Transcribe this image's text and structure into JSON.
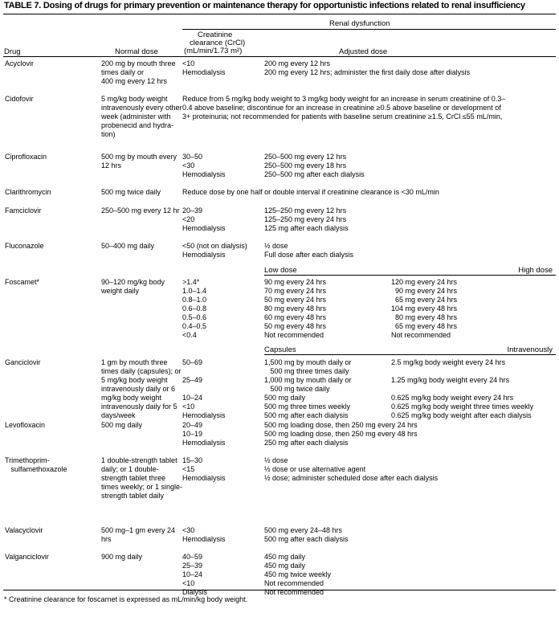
{
  "title": "TABLE 7. Dosing of drugs for primary prevention or maintenance therapy for opportunistic infections related to renal insufficiency",
  "header": {
    "group": "Renal dysfunction",
    "drug": "Drug",
    "normal_dose": "Normal dose",
    "crcl": [
      "Creatinine",
      "clearance (CrCl)",
      "(mL/min/1.73 m²)"
    ],
    "adjusted_dose": "Adjusted dose"
  },
  "rows": [
    {
      "drug": [
        "Acyclovir"
      ],
      "normal": [
        "200 mg by mouth three",
        "times daily or",
        "400 mg every 12 hrs"
      ],
      "crcl": [
        "<10",
        "Hemodialysis"
      ],
      "adjusted": [
        "200 mg every 12 hrs",
        "200 mg every 12 hrs; administer the first daily dose after dialysis"
      ]
    },
    {
      "drug": [
        "Cidofovir"
      ],
      "normal": [
        "5 mg/kg body weight",
        "intravenously every other",
        "week (administer with",
        "probenecid and hydra-",
        "tion)"
      ],
      "span": [
        "Reduce from 5 mg/kg body weight to 3 mg/kg body weight for an increase in serum creatinine of 0.3–",
        "0.4 above baseline; discontinue for an increase in creatinine ≥0.5 above baseline or development of",
        "3+ proteinuria; not recommended for patients with baseline serum creatinine ≥1.5, CrCl ≤55 mL/min,"
      ]
    },
    {
      "drug": [
        "Ciprofloxacin"
      ],
      "normal": [
        "500 mg by mouth every",
        "12 hrs"
      ],
      "crcl": [
        "30–50",
        "<30",
        "Hemodialysis"
      ],
      "adjusted": [
        "250–500 mg every 12 hrs",
        "250–500 mg every 18 hrs",
        "250–500 mg after each dialysis"
      ]
    },
    {
      "drug": [
        "Clarithromycin"
      ],
      "normal": [
        "500 mg twice daily"
      ],
      "span": [
        "Reduce dose by one half or double interval if creatinine clearance is <30 mL/min"
      ]
    },
    {
      "drug": [
        "Famciclovir"
      ],
      "normal": [
        "250–500 mg every 12 hr"
      ],
      "crcl": [
        "20–39",
        "<20",
        "Hemodialysis"
      ],
      "adjusted": [
        "125–250 mg every 12 hrs",
        "125–250 mg every 24 hrs",
        "125 mg after each dialysis"
      ]
    },
    {
      "drug": [
        "Fluconazole"
      ],
      "normal": [
        "50–400 mg daily"
      ],
      "crcl": [
        "<50 (not on dialysis)",
        "Hemodialysis"
      ],
      "adjusted": [
        "½ dose",
        "Full dose after each dialysis"
      ]
    },
    {
      "drug": [
        "Foscamet*"
      ],
      "normal": [
        "90–120 mg/kg body",
        "weight daily"
      ],
      "subheader": {
        "left": "Low dose",
        "right": "High dose"
      },
      "crcl": [
        ">1.4*",
        "1.0–1.4",
        "0.8–1.0",
        "0.6–0.8",
        "0.5–0.6",
        "0.4–0.5",
        "<0.4"
      ],
      "adjusted": [
        "90 mg every 24 hrs",
        "70 mg every 24 hrs",
        "50 mg every 24 hrs",
        "80 mg every 48 hrs",
        "60 mg every 48 hrs",
        "50 mg every 48 hrs",
        "Not recommended"
      ],
      "high": [
        "120 mg every 24 hrs",
        "  90 mg every 24 hrs",
        "  65 mg every 24 hrs",
        "104 mg every 48 hrs",
        "  80 mg every 48 hrs",
        "  65 mg every 48 hrs",
        "Not recommended"
      ]
    },
    {
      "drug": [
        "Ganciclovir"
      ],
      "normal": [
        "1 gm by mouth three",
        "times daily (capsules); or",
        "5 mg/kg body weight",
        "intravenously daily or 6",
        "mg/kg body weight",
        "intravenously daily for 5",
        "days/week"
      ],
      "subheader": {
        "left": "Capsules",
        "right": "Intravenously"
      },
      "crcl": [
        "50–69",
        "",
        "25–49",
        "",
        "10–24",
        "<10",
        "Hemodialysis"
      ],
      "adjusted": [
        "1,500 mg by mouth daily or",
        "   500 mg three times daily",
        "1,000 mg by mouth daily or",
        "   500 mg twice daily",
        "500 mg daily",
        "500 mg three times weekly",
        "500 mg after each dialysis"
      ],
      "high": [
        "2.5 mg/kg body weight every 24 hrs",
        "",
        "1.25 mg/kg body weight every 24 hrs",
        "",
        "0.625 mg/kg body weight every 24 hrs",
        "0.625 mg/kg body weight three times weekly",
        "0.625 mg/kg body weight after each dialysis"
      ]
    },
    {
      "drug": [
        "Levofloxacin"
      ],
      "normal": [
        "500 mg daily"
      ],
      "crcl": [
        "20–49",
        "10–19",
        "Hemodialysis"
      ],
      "adjusted": [
        "500 mg loading dose, then 250 mg every 24 hrs",
        "500 mg loading dose, then 250 mg every 48 hrs",
        "250 mg after each dialysis"
      ]
    },
    {
      "drug": [
        "Trimethoprim-",
        "   sulfamethoxazole"
      ],
      "normal": [
        "1 double-strength tablet",
        "daily; or 1 double-",
        "strength tablet three",
        "times weekly; or 1 single-",
        "strength tablet daily"
      ],
      "crcl": [
        "15–30",
        "<15",
        "Hemodialysis"
      ],
      "adjusted": [
        "½ dose",
        "½ dose or use alternative agent",
        "½ dose; administer scheduled dose after each dialysis"
      ]
    },
    {
      "drug": [
        "Valacyclovir"
      ],
      "normal": [
        "500 mg–1 gm every 24",
        "hrs"
      ],
      "crcl": [
        "<30",
        "Hemodialysis"
      ],
      "adjusted": [
        "500 mg every 24–48 hrs",
        "500 mg after each dialysis"
      ]
    },
    {
      "drug": [
        "Valganciclovir"
      ],
      "normal": [
        "900 mg daily"
      ],
      "crcl": [
        "40–59",
        "25–39",
        "10–24",
        "<10",
        "Dialysis"
      ],
      "adjusted": [
        "450 mg daily",
        "450 mg daily",
        "450 mg twice weekly",
        "Not recommended",
        "Not recommended"
      ]
    }
  ],
  "footnote": "* Creatinine clearance for foscarnet is expressed as mL/min/kg body weight."
}
